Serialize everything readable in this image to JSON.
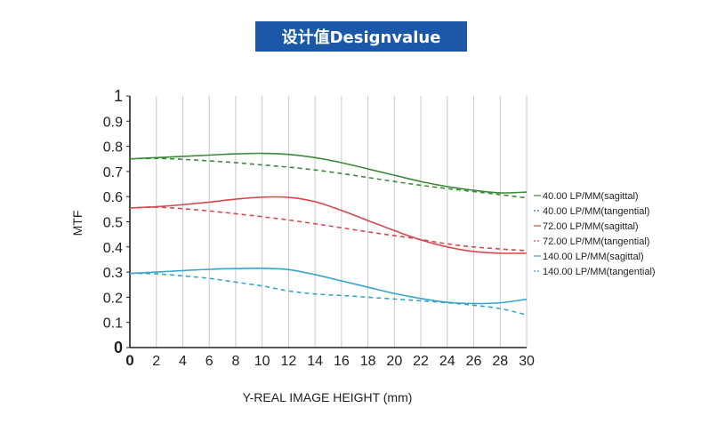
{
  "chart_data": {
    "type": "line",
    "title": "设计值Designvalue",
    "xlabel": "Y-REAL IMAGE HEIGHT (mm)",
    "ylabel": "MTF",
    "xlim": [
      0,
      30
    ],
    "ylim": [
      0,
      1
    ],
    "x_ticks": [
      "0",
      "2",
      "4",
      "6",
      "8",
      "10",
      "12",
      "14",
      "16",
      "18",
      "20",
      "22",
      "24",
      "26",
      "28",
      "30"
    ],
    "y_ticks": [
      "0",
      "0.1",
      "0.2",
      "0.3",
      "0.4",
      "0.5",
      "0.6",
      "0.7",
      "0.8",
      "0.9",
      "1"
    ],
    "grid": "vertical",
    "legend_position": "right",
    "x": [
      0,
      2,
      4,
      6,
      8,
      10,
      12,
      14,
      16,
      18,
      20,
      22,
      24,
      26,
      28,
      30
    ],
    "series": [
      {
        "name": "40.00 LP/MM(sagittal)",
        "color": "#3a8a3a",
        "dashed": false,
        "values": [
          0.75,
          0.755,
          0.76,
          0.765,
          0.77,
          0.772,
          0.768,
          0.755,
          0.735,
          0.71,
          0.685,
          0.66,
          0.64,
          0.625,
          0.615,
          0.618
        ]
      },
      {
        "name": "40.00 LP/MM(tangential)",
        "color": "#3a8a3a",
        "dashed": true,
        "values": [
          0.75,
          0.752,
          0.748,
          0.742,
          0.735,
          0.726,
          0.717,
          0.706,
          0.692,
          0.676,
          0.66,
          0.645,
          0.632,
          0.62,
          0.608,
          0.595
        ]
      },
      {
        "name": "72.00 LP/MM(sagittal)",
        "color": "#d9474a",
        "dashed": false,
        "values": [
          0.555,
          0.56,
          0.568,
          0.578,
          0.59,
          0.598,
          0.597,
          0.58,
          0.545,
          0.505,
          0.465,
          0.428,
          0.4,
          0.382,
          0.375,
          0.375
        ]
      },
      {
        "name": "72.00 LP/MM(tangential)",
        "color": "#d9474a",
        "dashed": true,
        "values": [
          0.555,
          0.558,
          0.552,
          0.543,
          0.532,
          0.52,
          0.507,
          0.492,
          0.476,
          0.46,
          0.445,
          0.43,
          0.412,
          0.4,
          0.392,
          0.385
        ]
      },
      {
        "name": "140.00 LP/MM(sagittal)",
        "color": "#37a4cf",
        "dashed": false,
        "values": [
          0.295,
          0.3,
          0.306,
          0.311,
          0.314,
          0.315,
          0.31,
          0.29,
          0.265,
          0.24,
          0.215,
          0.195,
          0.18,
          0.175,
          0.178,
          0.192
        ]
      },
      {
        "name": "140.00 LP/MM(tangential)",
        "color": "#37a4cf",
        "dashed": true,
        "values": [
          0.295,
          0.293,
          0.285,
          0.275,
          0.26,
          0.245,
          0.225,
          0.213,
          0.207,
          0.2,
          0.193,
          0.186,
          0.178,
          0.168,
          0.155,
          0.13
        ]
      }
    ]
  }
}
